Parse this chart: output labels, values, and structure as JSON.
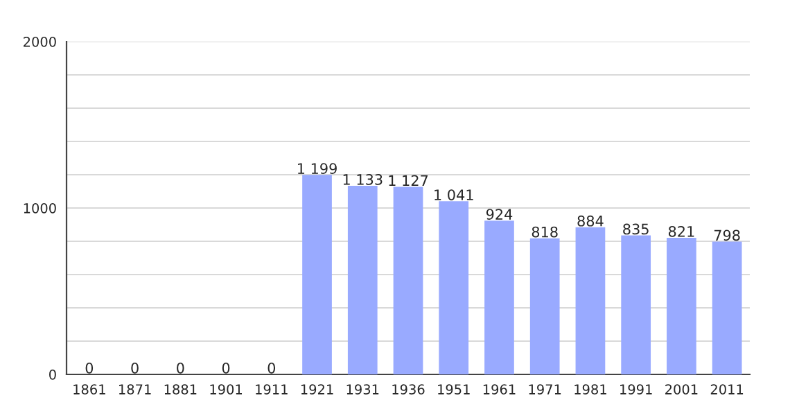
{
  "chart_data": {
    "type": "bar",
    "categories": [
      "1861",
      "1871",
      "1881",
      "1901",
      "1911",
      "1921",
      "1931",
      "1936",
      "1951",
      "1961",
      "1971",
      "1981",
      "1991",
      "2001",
      "2011"
    ],
    "values": [
      0,
      0,
      0,
      0,
      0,
      1199,
      1133,
      1127,
      1041,
      924,
      818,
      884,
      835,
      821,
      798
    ],
    "value_labels": [
      "0",
      "0",
      "0",
      "0",
      "0",
      "1 199",
      "1 133",
      "1 127",
      "1 041",
      "924",
      "818",
      "884",
      "835",
      "821",
      "798"
    ],
    "color": "#99aaff",
    "ylim": [
      0,
      2000
    ],
    "yticks": [
      0,
      {
        "value": 200,
        "label": null
      },
      {
        "value": 400,
        "label": null
      },
      {
        "value": 600,
        "label": null
      },
      {
        "value": 800,
        "label": null
      },
      1000,
      {
        "value": 1200,
        "label": null
      },
      {
        "value": 1400,
        "label": null
      },
      {
        "value": 1600,
        "label": null
      },
      {
        "value": 1800,
        "label": null
      },
      2000
    ],
    "grid": "y"
  }
}
